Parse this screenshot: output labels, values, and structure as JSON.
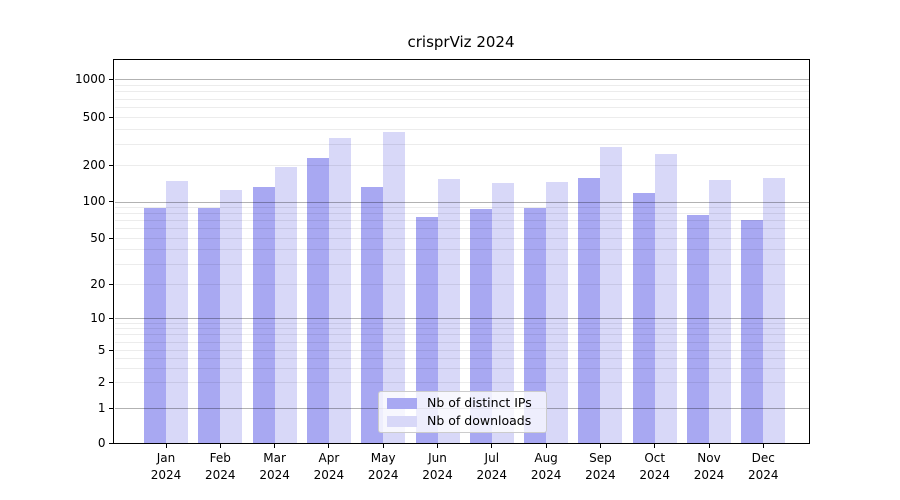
{
  "title": "crisprViz 2024",
  "chart_data": {
    "type": "bar",
    "title": "crisprViz 2024",
    "categories": [
      "Jan",
      "Feb",
      "Mar",
      "Apr",
      "May",
      "Jun",
      "Jul",
      "Aug",
      "Sep",
      "Oct",
      "Nov",
      "Dec"
    ],
    "year": "2024",
    "series": [
      {
        "name": "Nb of distinct IPs",
        "color": "#a8a8f2",
        "values": [
          89,
          89,
          133,
          230,
          133,
          75,
          87,
          89,
          156,
          117,
          77,
          70
        ]
      },
      {
        "name": "Nb of downloads",
        "color": "#d8d8f8",
        "values": [
          147,
          124,
          192,
          335,
          375,
          154,
          142,
          145,
          284,
          248,
          151,
          155
        ]
      }
    ],
    "xlabel": "",
    "ylabel": "",
    "y_ticks": [
      0,
      1,
      2,
      5,
      10,
      20,
      50,
      100,
      200,
      500,
      1000
    ],
    "y_major_gridlines": [
      1,
      10,
      100,
      1000
    ],
    "ylim": [
      0,
      1430
    ],
    "y_scale": "log-like with zero baseline",
    "grid": "horizontal major and minor gridlines",
    "legend_position": "lower center inside plot",
    "colors": {
      "major_grid": "#b3b3b3",
      "minor_grid": "#ececec",
      "axis": "#000000",
      "background": "#ffffff"
    }
  },
  "legend": {
    "items": [
      {
        "label": "Nb of distinct IPs"
      },
      {
        "label": "Nb of downloads"
      }
    ]
  }
}
